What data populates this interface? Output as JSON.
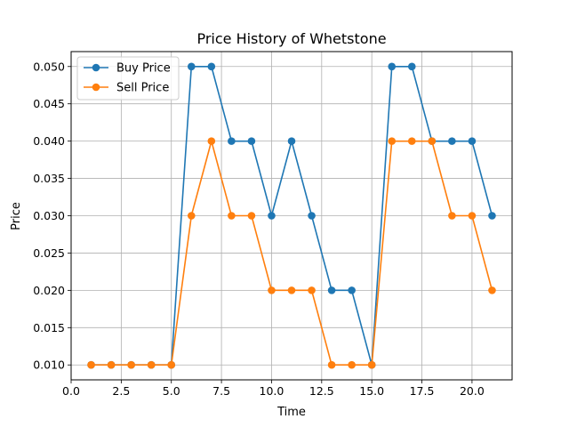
{
  "chart_data": {
    "type": "line",
    "title": "Price History of Whetstone",
    "xlabel": "Time",
    "ylabel": "Price",
    "xlim": [
      0,
      22
    ],
    "ylim": [
      0.008,
      0.052
    ],
    "xticks": [
      0,
      2.5,
      5,
      7.5,
      10,
      12.5,
      15,
      17.5,
      20
    ],
    "xtick_labels": [
      "0.0",
      "2.5",
      "5.0",
      "7.5",
      "10.0",
      "12.5",
      "15.0",
      "17.5",
      "20.0"
    ],
    "yticks": [
      0.01,
      0.015,
      0.02,
      0.025,
      0.03,
      0.035,
      0.04,
      0.045,
      0.05
    ],
    "ytick_labels": [
      "0.010",
      "0.015",
      "0.020",
      "0.025",
      "0.030",
      "0.035",
      "0.040",
      "0.045",
      "0.050"
    ],
    "grid": true,
    "legend_position": "top-left",
    "x": [
      1,
      2,
      3,
      4,
      5,
      6,
      7,
      8,
      9,
      10,
      11,
      12,
      13,
      14,
      15,
      16,
      17,
      18,
      19,
      20,
      21
    ],
    "series": [
      {
        "name": "Buy Price",
        "color": "#1f77b4",
        "values": [
          0.01,
          0.01,
          0.01,
          0.01,
          0.01,
          0.05,
          0.05,
          0.04,
          0.04,
          0.03,
          0.04,
          0.03,
          0.02,
          0.02,
          0.01,
          0.05,
          0.05,
          0.04,
          0.04,
          0.04,
          0.03
        ]
      },
      {
        "name": "Sell Price",
        "color": "#ff7f0e",
        "values": [
          0.01,
          0.01,
          0.01,
          0.01,
          0.01,
          0.03,
          0.04,
          0.03,
          0.03,
          0.02,
          0.02,
          0.02,
          0.01,
          0.01,
          0.01,
          0.04,
          0.04,
          0.04,
          0.03,
          0.03,
          0.02
        ]
      }
    ]
  }
}
